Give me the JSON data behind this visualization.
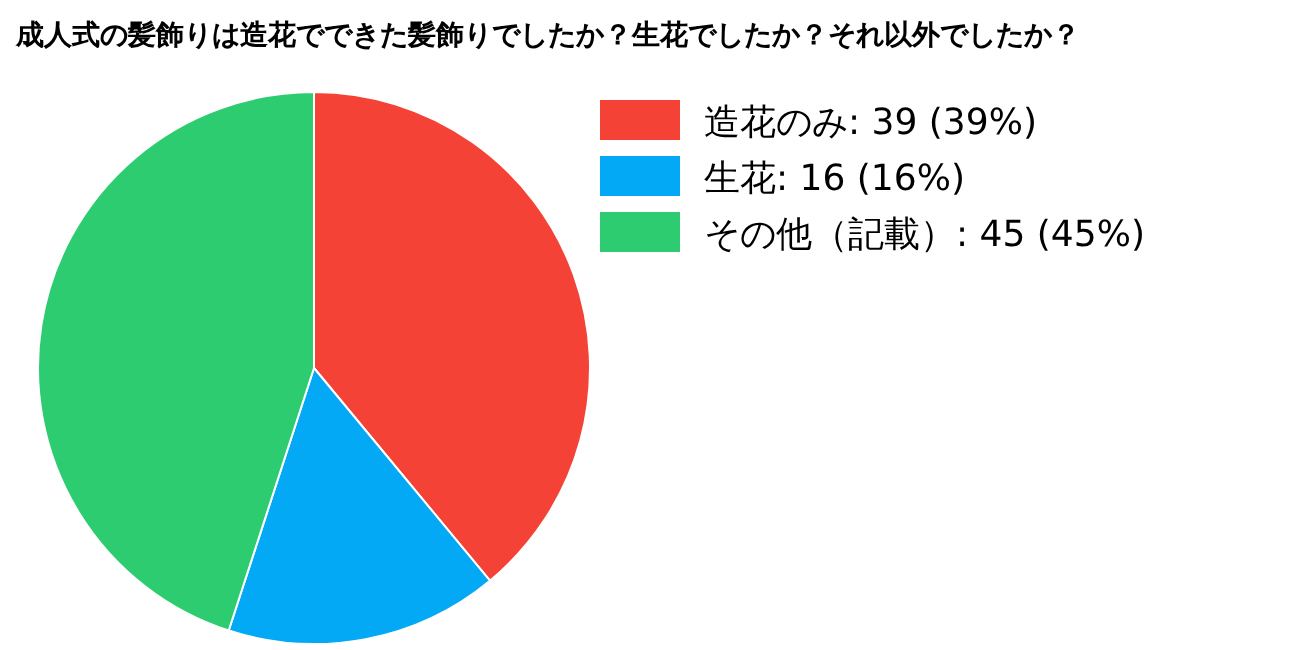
{
  "chart_data": {
    "type": "pie",
    "title": "成人式の髪飾りは造花でできた髪飾りでしたか？生花でしたか？それ以外でしたか？",
    "categories": [
      "造花のみ",
      "生花",
      "その他（記載）"
    ],
    "values": [
      39,
      16,
      45
    ],
    "value_labels": [
      "39 (39%)",
      "16 (16%)",
      "45 (45%)"
    ],
    "colors": [
      "#f44336",
      "#03a9f4",
      "#2ecc71"
    ],
    "legend": "right"
  }
}
